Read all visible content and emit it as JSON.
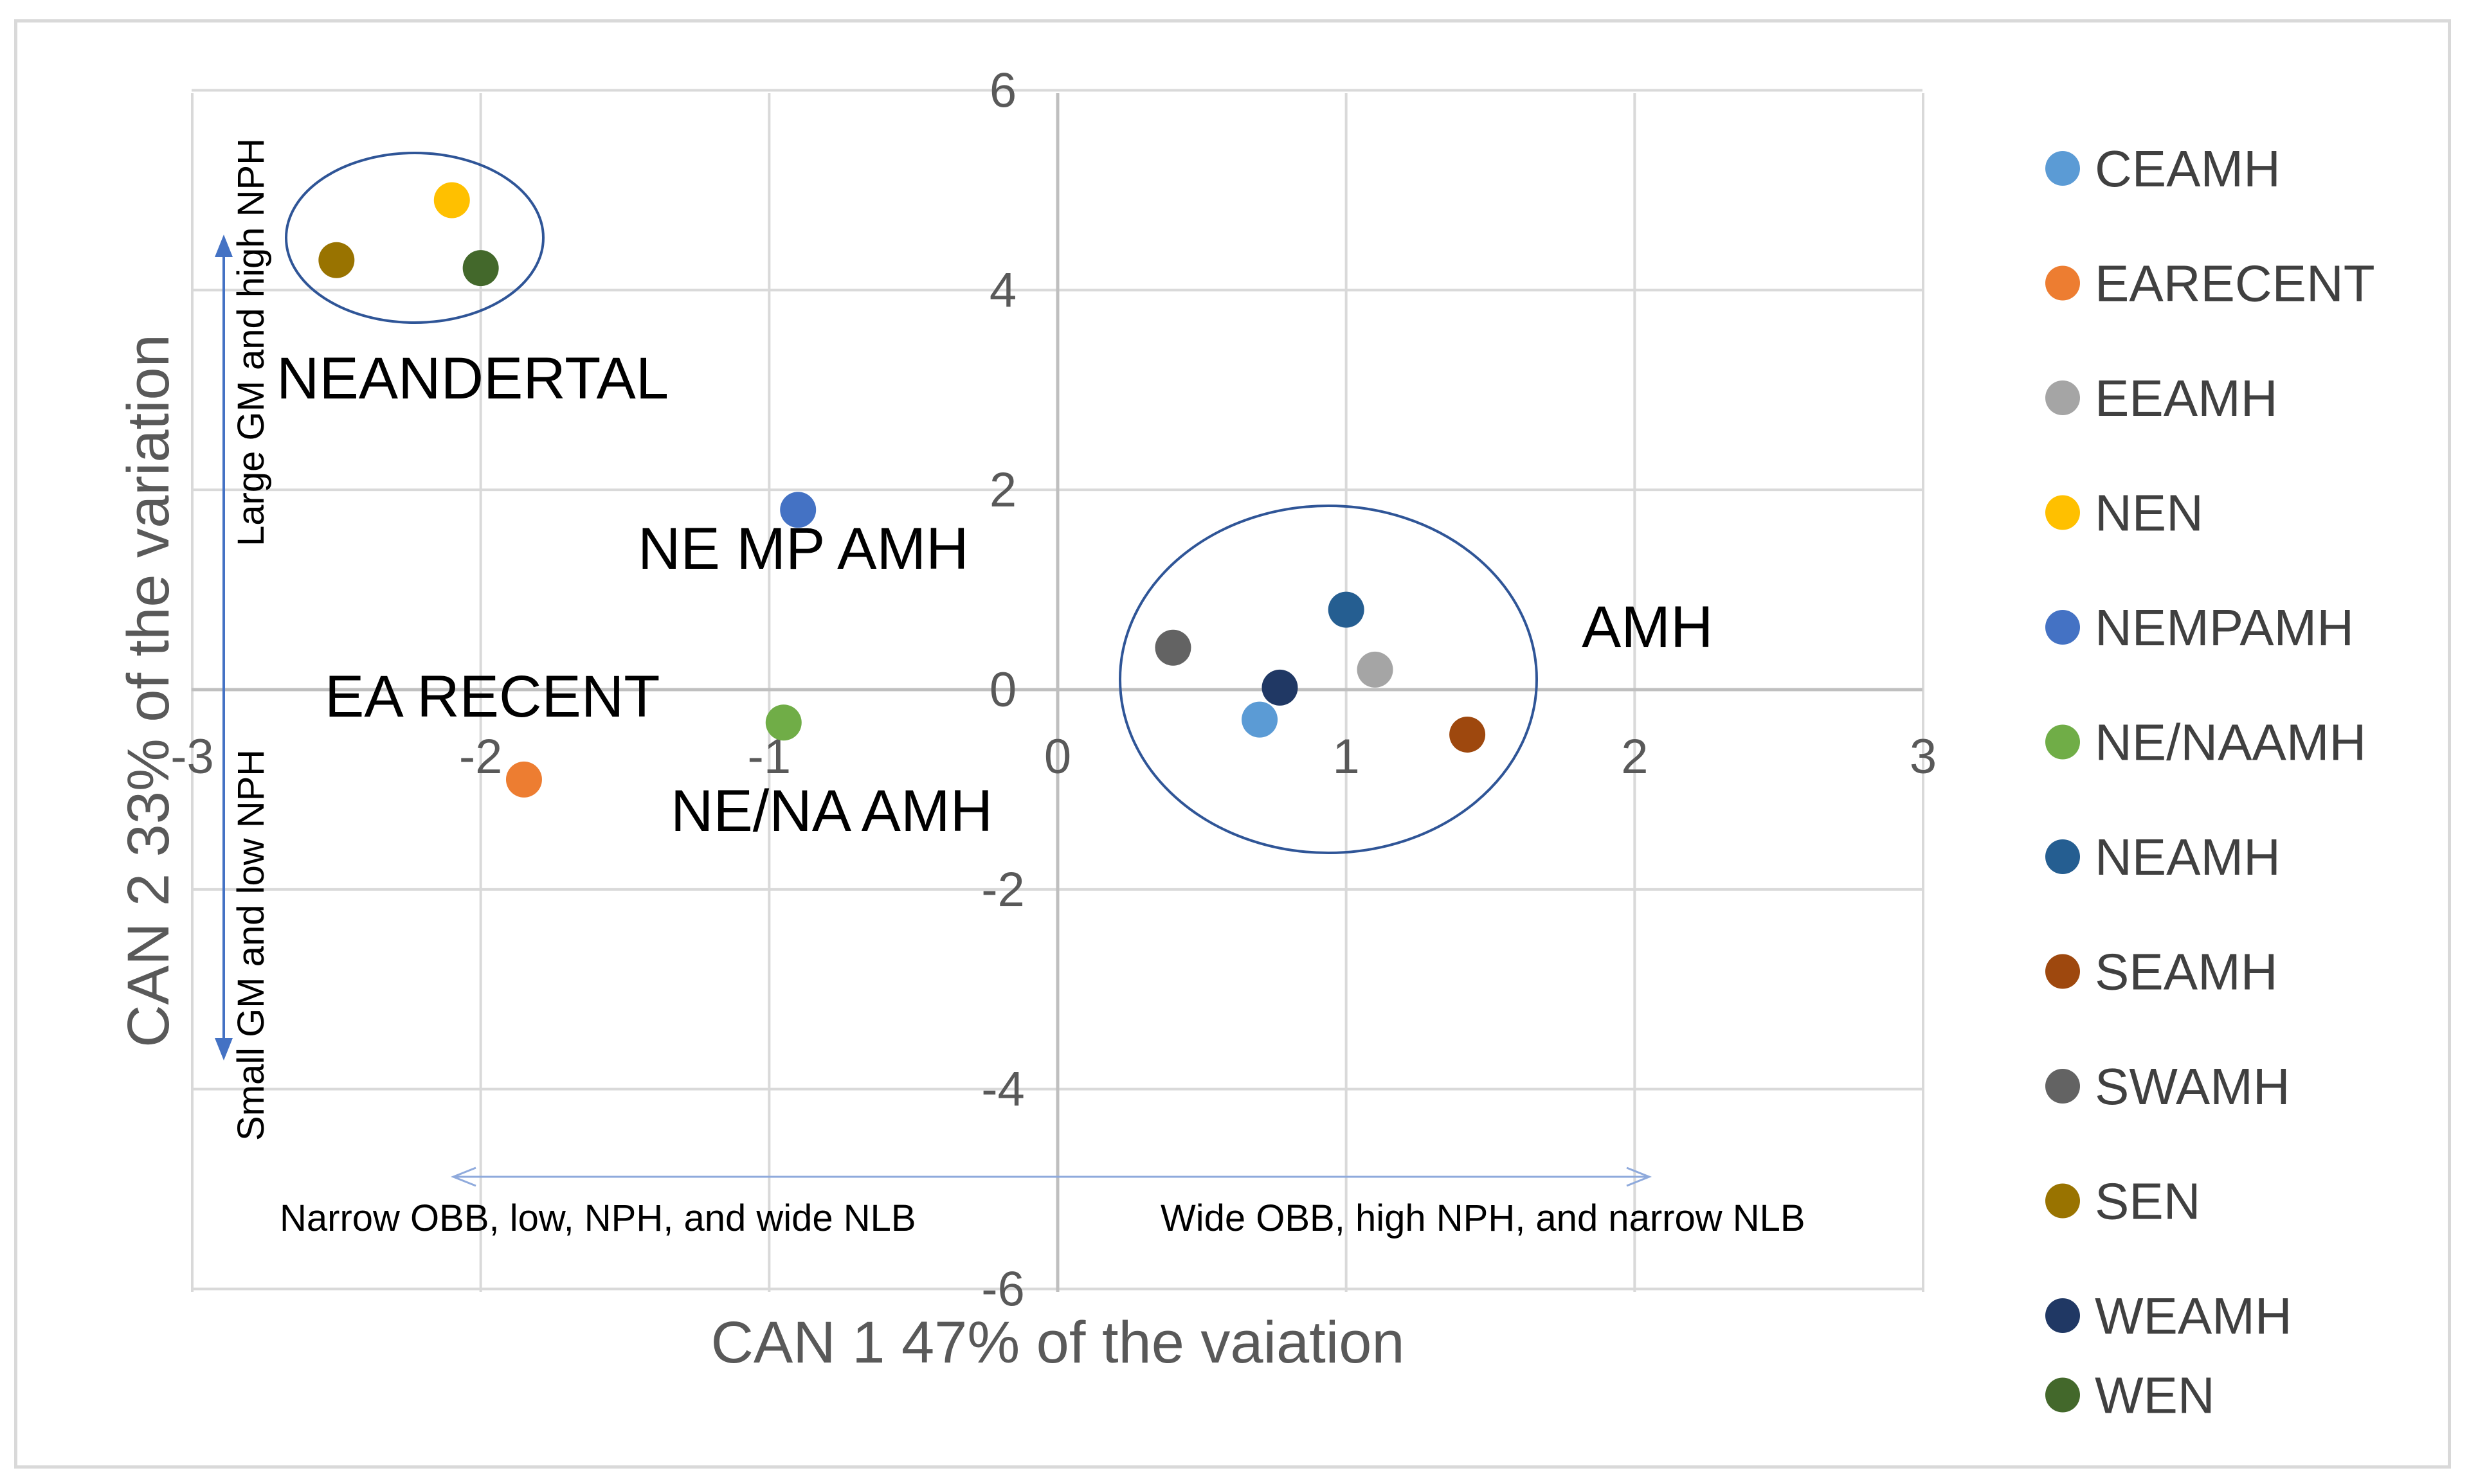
{
  "chart_data": {
    "type": "scatter",
    "xlabel": "CAN 1 47% of the vaiation",
    "ylabel": "CAN 2 33% of the variation",
    "xlim": [
      -3,
      3
    ],
    "ylim": [
      -6,
      6
    ],
    "x_ticks": [
      -3,
      -2,
      -1,
      0,
      1,
      2,
      3
    ],
    "y_ticks": [
      -6,
      -4,
      -2,
      0,
      2,
      4,
      6
    ],
    "grid": true,
    "legend_position": "right",
    "series": [
      {
        "name": "CEAMH",
        "color": "#5b9bd5",
        "x": 0.7,
        "y": -0.3
      },
      {
        "name": "EARECENT",
        "color": "#ed7d31",
        "x": -1.85,
        "y": -0.9
      },
      {
        "name": "EEAMH",
        "color": "#a5a5a5",
        "x": 1.1,
        "y": 0.2
      },
      {
        "name": "NEN",
        "color": "#ffc000",
        "x": -2.1,
        "y": 4.9
      },
      {
        "name": "NEMPAMH",
        "color": "#4472c4",
        "x": -0.9,
        "y": 1.8
      },
      {
        "name": "NE/NAAMH",
        "color": "#70ad47",
        "x": -0.95,
        "y": -0.33
      },
      {
        "name": "NEAMH",
        "color": "#255e91",
        "x": 1.0,
        "y": 0.8
      },
      {
        "name": "SEAMH",
        "color": "#9e480e",
        "x": 1.42,
        "y": -0.45
      },
      {
        "name": "SWAMH",
        "color": "#636363",
        "x": 0.4,
        "y": 0.42
      },
      {
        "name": "SEN",
        "color": "#997300",
        "x": -2.5,
        "y": 4.3
      },
      {
        "name": "WEAMH",
        "color": "#203864",
        "x": 0.77,
        "y": 0.02
      },
      {
        "name": "WEN",
        "color": "#43682b",
        "x": -2.0,
        "y": 4.22
      }
    ],
    "annotations": {
      "neandertal": "NEANDERTAL",
      "ne_mp_amh": "NE MP AMH",
      "ea_recent": "EA RECENT",
      "ne_na_amh": "NE/NA AMH",
      "amh": "AMH",
      "y_arrow_top": "Large GM and high NPH",
      "y_arrow_bottom": "Small GM and low NPH",
      "x_arrow_left": "Narrow OBB, low, NPH, and wide NLB",
      "x_arrow_right": "Wide OBB, high NPH, and narrow NLB"
    },
    "colors": {
      "grid": "#d9d9d9",
      "axis": "#bfbfbf",
      "ellipse": "#2f5597",
      "arrow": "#4472c4"
    }
  }
}
